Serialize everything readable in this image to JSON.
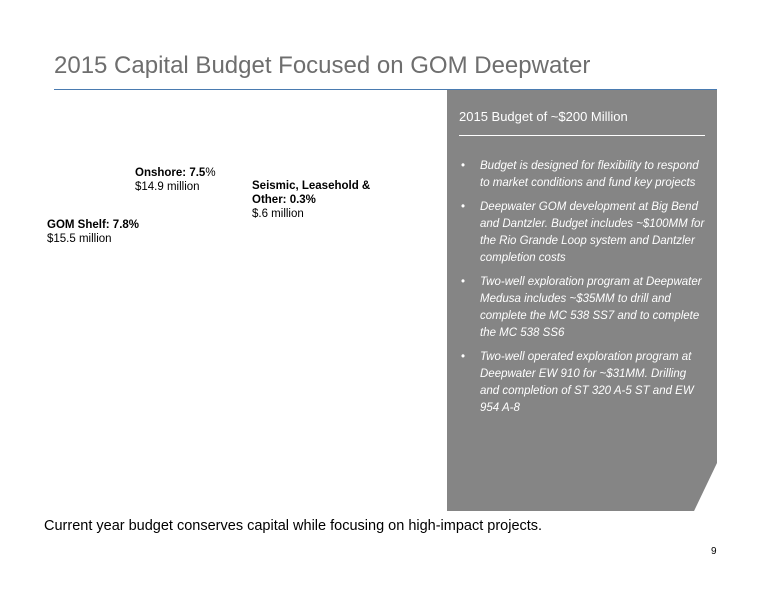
{
  "title": "2015 Capital Budget Focused on GOM Deepwater",
  "pie_labels": {
    "onshore": {
      "name": "Onshore",
      "pct_prefix": ": 7.5",
      "pct_suffix": "%",
      "amount": "$14.9 million"
    },
    "seismic": {
      "line1": "Seismic, Leasehold &",
      "line2": "Other: 0.3%",
      "amount": "$.6 million"
    },
    "gom_shelf": {
      "name": "GOM Shelf",
      "pct": ": 7.8%",
      "amount": "$15.5 million"
    }
  },
  "panel": {
    "title": "2015 Budget of ~$200 Million",
    "bullets": [
      "Budget is designed for flexibility to respond to market conditions and fund key projects",
      "Deepwater GOM development at Big Bend and Dantzler. Budget includes ~$100MM for the Rio Grande Loop system and Dantzler completion costs",
      "Two-well exploration program at Deepwater Medusa includes ~$35MM to drill and complete the MC 538 SS7 and  to complete the MC 538 SS6",
      "Two-well operated exploration program at Deepwater EW 910 for ~$31MM. Drilling and completion of ST 320 A-5 ST and EW 954 A-8"
    ],
    "bullet_glyph": "•"
  },
  "caption": "Current year budget conserves capital while focusing on high-impact projects.",
  "page_number": "9"
}
